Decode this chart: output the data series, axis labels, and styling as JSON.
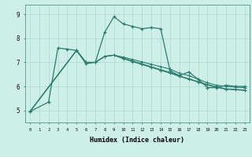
{
  "xlabel": "Humidex (Indice chaleur)",
  "background_color": "#ceeee8",
  "line_color": "#2a7d6e",
  "grid_color": "#aad8d0",
  "xlim": [
    -0.5,
    23.5
  ],
  "ylim": [
    4.5,
    9.4
  ],
  "line1_x": [
    0,
    2,
    3,
    4,
    5,
    6,
    7,
    8,
    9,
    10,
    11,
    12,
    13,
    14,
    15,
    16,
    17,
    18,
    19,
    20,
    21,
    22,
    23
  ],
  "line1_y": [
    4.95,
    5.35,
    7.6,
    7.55,
    7.5,
    6.95,
    7.0,
    8.25,
    8.9,
    8.6,
    8.5,
    8.4,
    8.45,
    8.4,
    6.65,
    6.45,
    6.6,
    6.3,
    5.95,
    5.95,
    6.05,
    6.0,
    6.0
  ],
  "line2_x": [
    0,
    5,
    6,
    7,
    8,
    9,
    10,
    11,
    12,
    13,
    14,
    15,
    16,
    17,
    18,
    19,
    20,
    21,
    22,
    23
  ],
  "line2_y": [
    4.95,
    7.5,
    7.0,
    7.0,
    7.25,
    7.3,
    7.22,
    7.12,
    7.02,
    6.92,
    6.82,
    6.72,
    6.55,
    6.45,
    6.3,
    6.15,
    6.05,
    6.0,
    5.97,
    5.95
  ],
  "line3_x": [
    0,
    5,
    6,
    7,
    8,
    9,
    10,
    11,
    12,
    13,
    14,
    15,
    16,
    17,
    18,
    19,
    20,
    21,
    22,
    23
  ],
  "line3_y": [
    4.95,
    7.5,
    7.0,
    7.0,
    7.25,
    7.3,
    7.18,
    7.06,
    6.94,
    6.82,
    6.7,
    6.58,
    6.44,
    6.32,
    6.2,
    6.08,
    5.98,
    5.9,
    5.88,
    5.85
  ],
  "line4_x": [
    0,
    5,
    6,
    7,
    8,
    9,
    10,
    11,
    12,
    13,
    14,
    15,
    16,
    17,
    18,
    19,
    20,
    21,
    22,
    23
  ],
  "line4_y": [
    4.95,
    7.5,
    7.0,
    7.0,
    7.25,
    7.3,
    7.15,
    7.03,
    6.91,
    6.79,
    6.67,
    6.55,
    6.42,
    6.3,
    6.18,
    6.06,
    5.96,
    5.88,
    5.86,
    5.83
  ]
}
